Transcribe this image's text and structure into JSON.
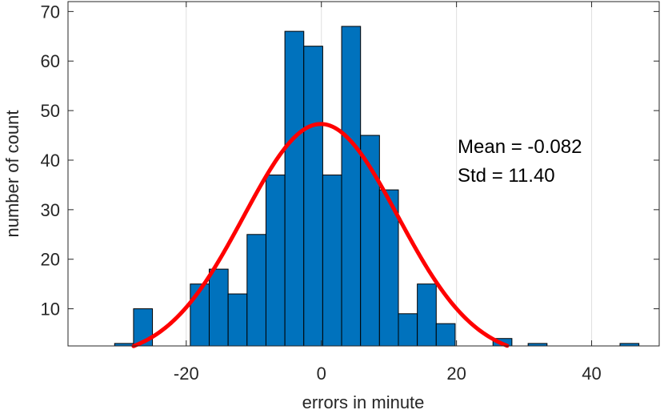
{
  "chart_data": {
    "type": "bar",
    "title": "",
    "xlabel": "errors in minute",
    "ylabel": "number of count",
    "xlim": [
      -37.5,
      50
    ],
    "ylim": [
      2.5,
      72
    ],
    "xticks": [
      -20,
      0,
      20,
      40
    ],
    "xtick_labels": [
      "-20",
      "0",
      "20",
      "40"
    ],
    "yticks": [
      10,
      20,
      30,
      40,
      50,
      60,
      70
    ],
    "ytick_labels": [
      "10",
      "20",
      "30",
      "40",
      "50",
      "60",
      "70"
    ],
    "grid": "vertical",
    "legend": "none",
    "bin_width": 2.8,
    "bins": [
      {
        "left": -30.6,
        "count": 3
      },
      {
        "left": -27.8,
        "count": 10
      },
      {
        "left": -19.4,
        "count": 15
      },
      {
        "left": -16.6,
        "count": 18
      },
      {
        "left": -13.8,
        "count": 13
      },
      {
        "left": -11.0,
        "count": 25
      },
      {
        "left": -8.2,
        "count": 37
      },
      {
        "left": -5.4,
        "count": 66
      },
      {
        "left": -2.6,
        "count": 63
      },
      {
        "left": 0.2,
        "count": 37
      },
      {
        "left": 3.0,
        "count": 67
      },
      {
        "left": 5.8,
        "count": 45
      },
      {
        "left": 8.6,
        "count": 34
      },
      {
        "left": 11.4,
        "count": 9
      },
      {
        "left": 14.2,
        "count": 15
      },
      {
        "left": 17.0,
        "count": 7
      },
      {
        "left": 25.4,
        "count": 4
      },
      {
        "left": 30.6,
        "count": 3
      },
      {
        "left": 44.2,
        "count": 3
      }
    ],
    "fit_curve": {
      "type": "normal",
      "mean": -0.082,
      "std": 11.4,
      "peak": 47.3,
      "x_range": [
        -27.8,
        27.5
      ]
    },
    "annotations": [
      "Mean = -0.082",
      "Std = 11.40"
    ]
  },
  "colors": {
    "bar_fill": "#0072bd",
    "bar_edge": "#000000",
    "curve": "#ff0000",
    "axis": "#262626",
    "grid": "#dfdfdf"
  }
}
